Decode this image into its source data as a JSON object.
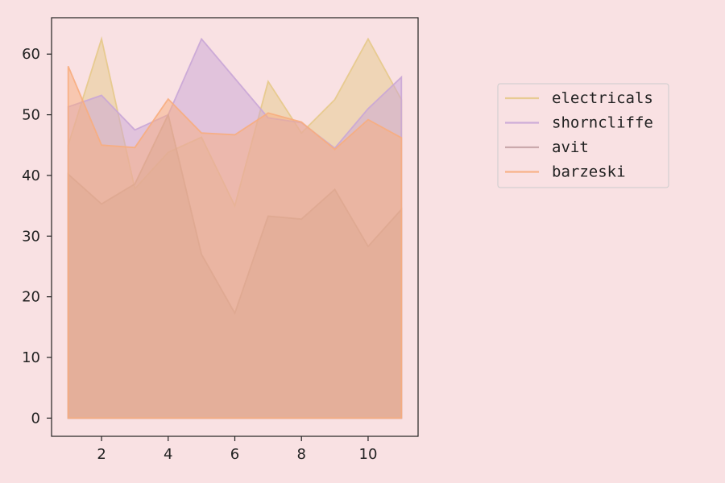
{
  "chart_data": {
    "type": "area",
    "x": [
      1,
      2,
      3,
      4,
      5,
      6,
      7,
      8,
      9,
      10,
      11
    ],
    "xlim": [
      0.5,
      11.5
    ],
    "ylim": [
      -3,
      66
    ],
    "xticks": [
      2,
      4,
      6,
      8,
      10
    ],
    "yticks": [
      0,
      10,
      20,
      30,
      40,
      50,
      60
    ],
    "grid": false,
    "legend_position": "right",
    "series": [
      {
        "name": "electricals",
        "color": "#e6c98a",
        "values": [
          45.0,
          62.5,
          37.8,
          43.8,
          46.3,
          35.0,
          55.5,
          47.0,
          52.5,
          62.5,
          52.5
        ]
      },
      {
        "name": "shorncliffe",
        "color": "#c9a6d6",
        "values": [
          51.3,
          53.2,
          47.5,
          50.0,
          62.5,
          56.0,
          49.5,
          48.7,
          44.5,
          51.0,
          56.2
        ]
      },
      {
        "name": "avit",
        "color": "#c5a3a5",
        "values": [
          40.2,
          35.3,
          38.6,
          50.0,
          27.0,
          17.3,
          33.3,
          32.8,
          37.7,
          28.3,
          34.4
        ]
      },
      {
        "name": "barzeski",
        "color": "#f7ad7e",
        "values": [
          58.0,
          45.0,
          44.6,
          52.6,
          47.0,
          46.7,
          50.3,
          48.8,
          44.3,
          49.2,
          46.2
        ]
      }
    ]
  }
}
